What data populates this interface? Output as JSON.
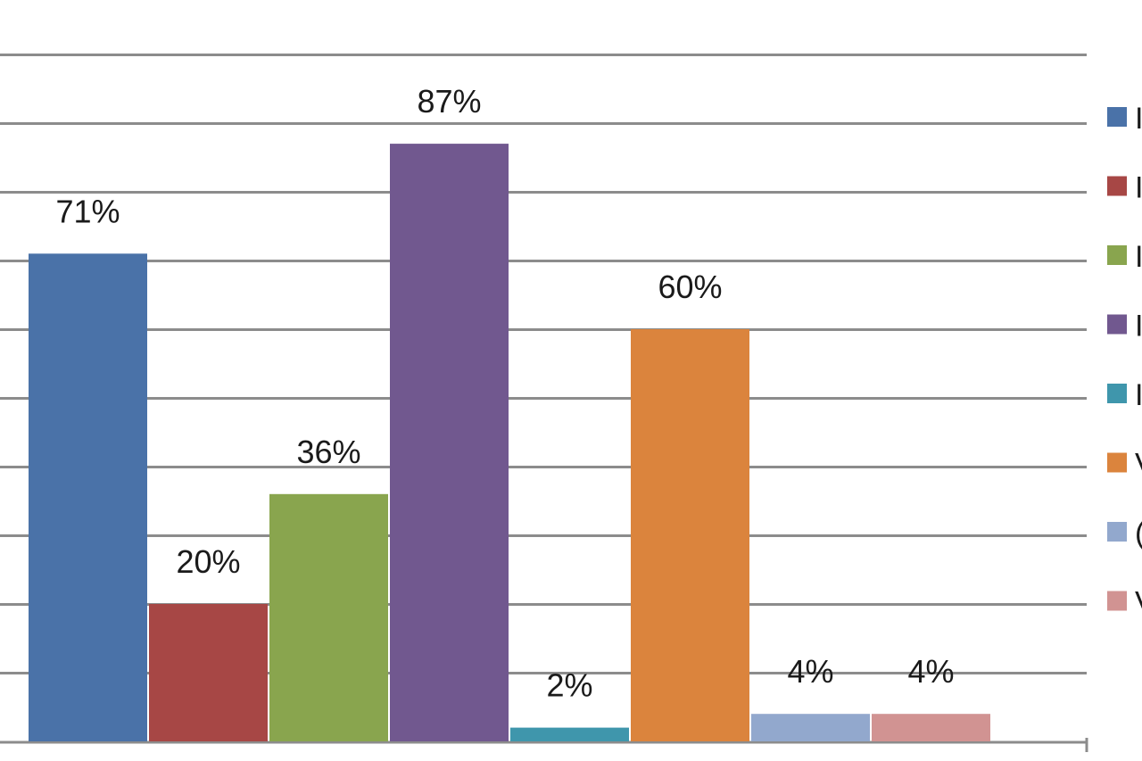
{
  "chart_data": {
    "type": "bar",
    "ylim": [
      0,
      100
    ],
    "grid": true,
    "legend_placement": "right",
    "series": [
      {
        "value": 71,
        "label": "71%",
        "color": "#4a72a8"
      },
      {
        "value": 20,
        "label": "20%",
        "color": "#a74745"
      },
      {
        "value": 36,
        "label": "36%",
        "color": "#89a54e"
      },
      {
        "value": 87,
        "label": "87%",
        "color": "#71588f"
      },
      {
        "value": 2,
        "label": "2%",
        "color": "#3f96ac"
      },
      {
        "value": 60,
        "label": "60%",
        "color": "#db843d"
      },
      {
        "value": 4,
        "label": "4%",
        "color": "#92a8cd"
      },
      {
        "value": 4,
        "label": "4%",
        "color": "#d19392"
      }
    ],
    "legend": [
      {
        "color": "#4a72a8",
        "text": "I"
      },
      {
        "color": "#a74745",
        "text": "I"
      },
      {
        "color": "#89a54e",
        "text": "I"
      },
      {
        "color": "#71588f",
        "text": "I"
      },
      {
        "color": "#3f96ac",
        "text": "I"
      },
      {
        "color": "#db843d",
        "text": "V"
      },
      {
        "color": "#92a8cd",
        "text": "("
      },
      {
        "color": "#d19392",
        "text": "V"
      }
    ]
  }
}
